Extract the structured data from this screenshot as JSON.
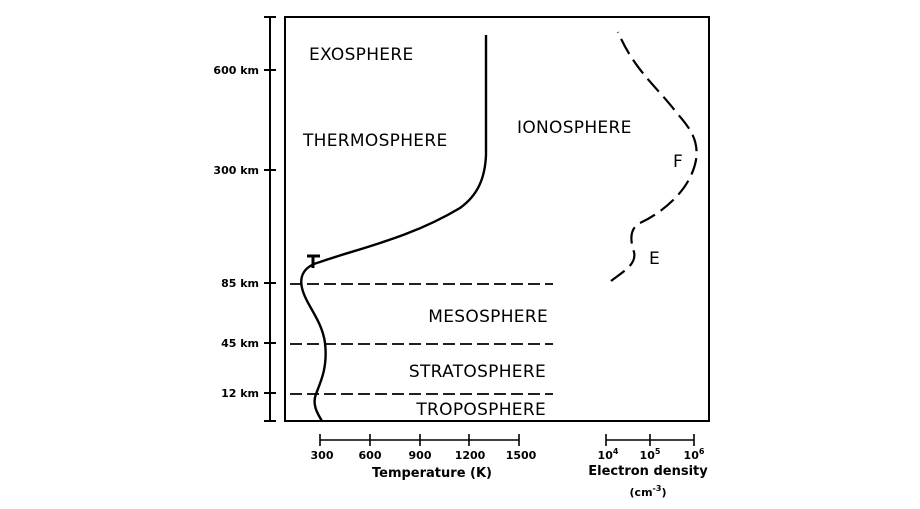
{
  "layers": {
    "exosphere": "EXOSPHERE",
    "thermosphere": "THERMOSPHERE",
    "mesosphere": "MESOSPHERE",
    "stratosphere": "STRATOSPHERE",
    "troposphere": "TROPOSPHERE",
    "ionosphere": "IONOSPHERE",
    "f_layer": "F",
    "e_layer": "E",
    "mesopause_marker": "T"
  },
  "altitude_axis": {
    "labels": [
      "600 km",
      "300 km",
      "85 km",
      "45 km",
      "12 km"
    ]
  },
  "temperature_axis": {
    "title": "Temperature (K)",
    "ticks": [
      "300",
      "600",
      "900",
      "1200",
      "1500"
    ]
  },
  "electron_axis": {
    "title": "Electron density",
    "unit_base": "(cm",
    "unit_exp": "-3",
    "unit_close": ")",
    "tick_base": "10",
    "tick_exps": [
      "4",
      "5",
      "6"
    ]
  }
}
